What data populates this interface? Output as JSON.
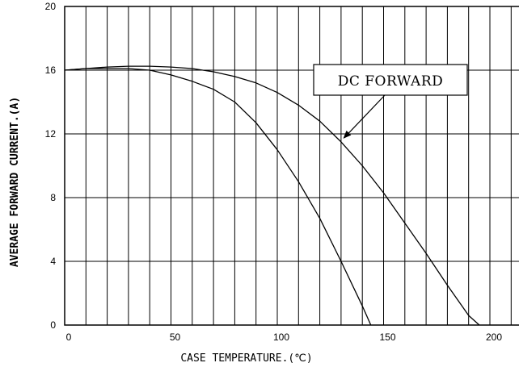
{
  "chart_data": {
    "type": "line",
    "title": "",
    "xlabel": "CASE TEMPERATURE.(℃)",
    "ylabel": "AVERAGE FORWARD CURRENT.(A)",
    "xlim": [
      0,
      200
    ],
    "ylim": [
      0,
      20
    ],
    "x_tick_labels": [
      "0",
      "50",
      "100",
      "150",
      "200"
    ],
    "y_tick_labels": [
      "0",
      "4",
      "8",
      "12",
      "16",
      "20"
    ],
    "grid": true,
    "x_grid_step": 10,
    "y_grid_step": 4,
    "series": [
      {
        "name": "DC FORWARD",
        "x": [
          0,
          10,
          20,
          30,
          40,
          50,
          60,
          70,
          80,
          90,
          100,
          110,
          120,
          130,
          140,
          150,
          160,
          170,
          180,
          190,
          195
        ],
        "y": [
          16.0,
          16.1,
          16.2,
          16.25,
          16.25,
          16.2,
          16.1,
          15.9,
          15.6,
          15.2,
          14.6,
          13.8,
          12.8,
          11.5,
          10.0,
          8.3,
          6.4,
          4.5,
          2.5,
          0.6,
          0.0
        ]
      },
      {
        "name": "",
        "x": [
          0,
          10,
          20,
          30,
          40,
          50,
          60,
          70,
          80,
          90,
          100,
          110,
          120,
          130,
          140,
          144
        ],
        "y": [
          16.0,
          16.1,
          16.1,
          16.1,
          16.0,
          15.7,
          15.3,
          14.8,
          14.0,
          12.7,
          11.0,
          9.0,
          6.7,
          4.0,
          1.2,
          0.0
        ]
      }
    ],
    "annotation": {
      "text": "DC FORWARD",
      "points_to": {
        "x": 131,
        "y": 11.7
      }
    }
  }
}
